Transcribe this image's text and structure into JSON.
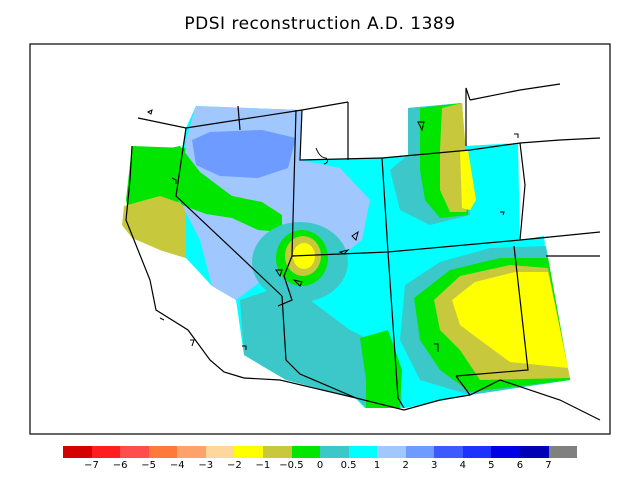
{
  "title": "PDSI reconstruction A.D. 1389",
  "colorbar": {
    "colors": [
      "#d50000",
      "#ff1e1e",
      "#ff4d4d",
      "#ff7a3a",
      "#ffa36b",
      "#ffd79c",
      "#ffff00",
      "#c8c83c",
      "#00e600",
      "#3cc8c8",
      "#00ffff",
      "#a0c8ff",
      "#6e9bff",
      "#3c5aff",
      "#1e32ff",
      "#0000e6",
      "#0000b4",
      "#808080"
    ],
    "labels": [
      "−7",
      "−6",
      "−5",
      "−4",
      "−3",
      "−2",
      "−1",
      "−0.5",
      "0",
      "0.5",
      "1",
      "2",
      "3",
      "4",
      "5",
      "6",
      "7"
    ]
  },
  "legend_colors": {
    "cyan": "#00ffff",
    "teal": "#3cc8c8",
    "lightblue": "#a0c8ff",
    "blue": "#6e9bff",
    "green": "#00e600",
    "olive": "#c8c83c",
    "yellow": "#ffff00"
  }
}
